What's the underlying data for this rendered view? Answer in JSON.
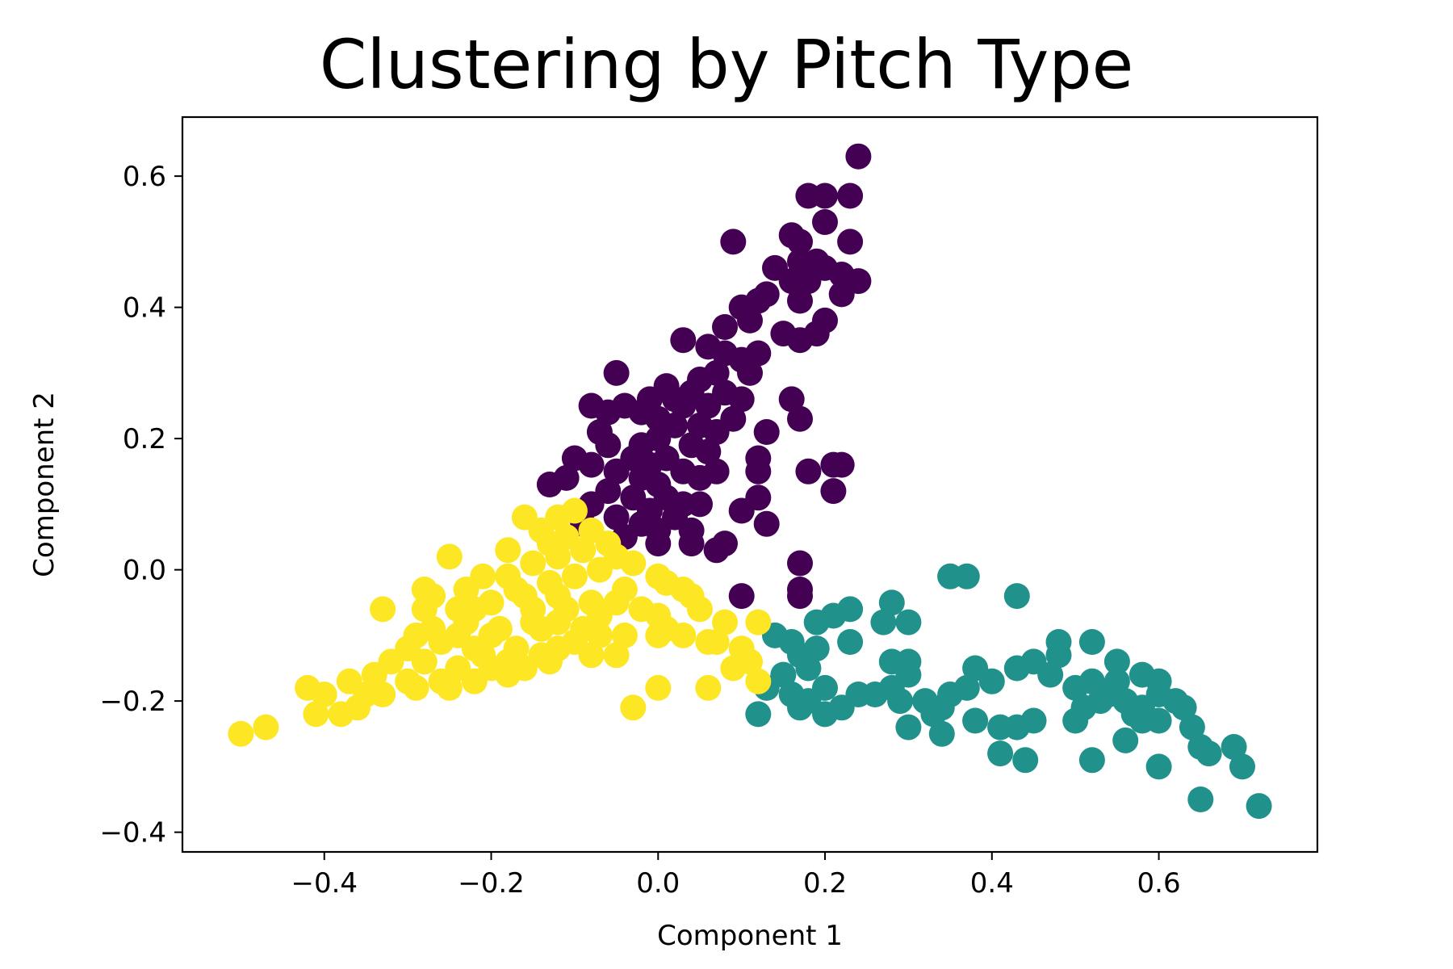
{
  "chart_data": {
    "type": "scatter",
    "title": "Clustering by Pitch Type",
    "xlabel": "Component 1",
    "ylabel": "Component 2",
    "xlim": [
      -0.57,
      0.79
    ],
    "ylim": [
      -0.43,
      0.69
    ],
    "xticks": [
      {
        "value": -0.4,
        "label": "−0.4"
      },
      {
        "value": -0.2,
        "label": "−0.2"
      },
      {
        "value": 0.0,
        "label": "0.0"
      },
      {
        "value": 0.2,
        "label": "0.2"
      },
      {
        "value": 0.4,
        "label": "0.4"
      },
      {
        "value": 0.6,
        "label": "0.6"
      }
    ],
    "yticks": [
      {
        "value": -0.4,
        "label": "−0.4"
      },
      {
        "value": -0.2,
        "label": "−0.2"
      },
      {
        "value": 0.0,
        "label": "0.0"
      },
      {
        "value": 0.2,
        "label": "0.2"
      },
      {
        "value": 0.4,
        "label": "0.4"
      },
      {
        "value": 0.6,
        "label": "0.6"
      }
    ],
    "grid": false,
    "legend": "none",
    "series": [
      {
        "color": "#440154",
        "points": [
          [
            0.24,
            0.63
          ],
          [
            0.18,
            0.57
          ],
          [
            0.2,
            0.57
          ],
          [
            0.23,
            0.57
          ],
          [
            0.2,
            0.53
          ],
          [
            0.16,
            0.51
          ],
          [
            0.09,
            0.5
          ],
          [
            0.17,
            0.5
          ],
          [
            0.23,
            0.5
          ],
          [
            0.17,
            0.47
          ],
          [
            0.19,
            0.47
          ],
          [
            0.2,
            0.46
          ],
          [
            0.22,
            0.45
          ],
          [
            0.14,
            0.46
          ],
          [
            0.16,
            0.44
          ],
          [
            0.18,
            0.44
          ],
          [
            0.24,
            0.44
          ],
          [
            0.22,
            0.42
          ],
          [
            0.13,
            0.42
          ],
          [
            0.12,
            0.41
          ],
          [
            0.1,
            0.4
          ],
          [
            0.17,
            0.41
          ],
          [
            0.11,
            0.38
          ],
          [
            0.2,
            0.38
          ],
          [
            0.08,
            0.37
          ],
          [
            0.19,
            0.36
          ],
          [
            0.15,
            0.36
          ],
          [
            0.17,
            0.35
          ],
          [
            0.03,
            0.35
          ],
          [
            0.06,
            0.34
          ],
          [
            0.08,
            0.33
          ],
          [
            0.1,
            0.32
          ],
          [
            0.12,
            0.33
          ],
          [
            0.07,
            0.3
          ],
          [
            0.05,
            0.29
          ],
          [
            0.11,
            0.3
          ],
          [
            -0.05,
            0.3
          ],
          [
            0.04,
            0.27
          ],
          [
            0.08,
            0.27
          ],
          [
            0.1,
            0.26
          ],
          [
            0.03,
            0.25
          ],
          [
            0.01,
            0.28
          ],
          [
            -0.01,
            0.26
          ],
          [
            -0.02,
            0.24
          ],
          [
            -0.04,
            0.25
          ],
          [
            -0.06,
            0.24
          ],
          [
            -0.08,
            0.25
          ],
          [
            0.0,
            0.23
          ],
          [
            0.02,
            0.22
          ],
          [
            0.05,
            0.22
          ],
          [
            0.07,
            0.21
          ],
          [
            0.09,
            0.23
          ],
          [
            0.16,
            0.26
          ],
          [
            0.17,
            0.23
          ],
          [
            0.13,
            0.21
          ],
          [
            0.0,
            0.2
          ],
          [
            -0.02,
            0.19
          ],
          [
            -0.03,
            0.17
          ],
          [
            -0.07,
            0.21
          ],
          [
            0.04,
            0.19
          ],
          [
            0.06,
            0.18
          ],
          [
            -0.01,
            0.16
          ],
          [
            0.01,
            0.17
          ],
          [
            0.03,
            0.15
          ],
          [
            -0.1,
            0.17
          ],
          [
            -0.11,
            0.14
          ],
          [
            -0.13,
            0.13
          ],
          [
            -0.08,
            0.16
          ],
          [
            -0.05,
            0.15
          ],
          [
            -0.02,
            0.14
          ],
          [
            0.0,
            0.13
          ],
          [
            0.05,
            0.14
          ],
          [
            0.07,
            0.15
          ],
          [
            0.12,
            0.17
          ],
          [
            0.12,
            0.15
          ],
          [
            0.18,
            0.15
          ],
          [
            0.21,
            0.16
          ],
          [
            0.22,
            0.16
          ],
          [
            0.21,
            0.12
          ],
          [
            -0.06,
            0.12
          ],
          [
            -0.03,
            0.11
          ],
          [
            0.01,
            0.11
          ],
          [
            0.03,
            0.1
          ],
          [
            -0.08,
            0.1
          ],
          [
            -0.05,
            0.08
          ],
          [
            -0.02,
            0.07
          ],
          [
            0.0,
            0.06
          ],
          [
            0.05,
            0.1
          ],
          [
            0.12,
            0.11
          ],
          [
            0.1,
            0.09
          ],
          [
            0.13,
            0.07
          ],
          [
            -0.04,
            0.05
          ],
          [
            0.0,
            0.04
          ],
          [
            0.04,
            0.04
          ],
          [
            0.07,
            0.03
          ],
          [
            0.08,
            0.04
          ],
          [
            0.17,
            0.01
          ],
          [
            0.17,
            -0.03
          ],
          [
            0.17,
            -0.04
          ],
          [
            0.1,
            -0.04
          ],
          [
            -0.01,
            0.09
          ],
          [
            0.02,
            0.08
          ],
          [
            0.04,
            0.06
          ],
          [
            -0.09,
            0.07
          ],
          [
            -0.06,
            0.19
          ],
          [
            0.02,
            0.26
          ],
          [
            0.06,
            0.25
          ]
        ]
      },
      {
        "color": "#21918c",
        "points": [
          [
            0.35,
            -0.01
          ],
          [
            0.37,
            -0.01
          ],
          [
            0.43,
            -0.04
          ],
          [
            0.28,
            -0.05
          ],
          [
            0.23,
            -0.06
          ],
          [
            0.19,
            -0.08
          ],
          [
            0.21,
            -0.07
          ],
          [
            0.27,
            -0.08
          ],
          [
            0.3,
            -0.08
          ],
          [
            0.14,
            -0.1
          ],
          [
            0.16,
            -0.11
          ],
          [
            0.19,
            -0.12
          ],
          [
            0.23,
            -0.11
          ],
          [
            0.17,
            -0.13
          ],
          [
            0.28,
            -0.14
          ],
          [
            0.3,
            -0.14
          ],
          [
            0.18,
            -0.15
          ],
          [
            0.3,
            -0.16
          ],
          [
            0.38,
            -0.15
          ],
          [
            0.43,
            -0.15
          ],
          [
            0.45,
            -0.14
          ],
          [
            0.47,
            -0.16
          ],
          [
            0.48,
            -0.11
          ],
          [
            0.52,
            -0.11
          ],
          [
            0.55,
            -0.14
          ],
          [
            0.58,
            -0.16
          ],
          [
            0.6,
            -0.17
          ],
          [
            0.13,
            -0.18
          ],
          [
            0.16,
            -0.19
          ],
          [
            0.2,
            -0.18
          ],
          [
            0.24,
            -0.19
          ],
          [
            0.28,
            -0.18
          ],
          [
            0.32,
            -0.2
          ],
          [
            0.35,
            -0.19
          ],
          [
            0.37,
            -0.18
          ],
          [
            0.4,
            -0.17
          ],
          [
            0.26,
            -0.19
          ],
          [
            0.29,
            -0.2
          ],
          [
            0.5,
            -0.18
          ],
          [
            0.52,
            -0.17
          ],
          [
            0.54,
            -0.19
          ],
          [
            0.56,
            -0.2
          ],
          [
            0.58,
            -0.21
          ],
          [
            0.6,
            -0.19
          ],
          [
            0.62,
            -0.2
          ],
          [
            0.63,
            -0.21
          ],
          [
            0.12,
            -0.22
          ],
          [
            0.17,
            -0.21
          ],
          [
            0.2,
            -0.22
          ],
          [
            0.22,
            -0.21
          ],
          [
            0.34,
            -0.21
          ],
          [
            0.38,
            -0.23
          ],
          [
            0.45,
            -0.23
          ],
          [
            0.5,
            -0.23
          ],
          [
            0.53,
            -0.2
          ],
          [
            0.58,
            -0.23
          ],
          [
            0.6,
            -0.23
          ],
          [
            0.64,
            -0.24
          ],
          [
            0.3,
            -0.24
          ],
          [
            0.34,
            -0.25
          ],
          [
            0.41,
            -0.24
          ],
          [
            0.43,
            -0.24
          ],
          [
            0.56,
            -0.26
          ],
          [
            0.65,
            -0.27
          ],
          [
            0.66,
            -0.28
          ],
          [
            0.69,
            -0.27
          ],
          [
            0.41,
            -0.28
          ],
          [
            0.44,
            -0.29
          ],
          [
            0.52,
            -0.29
          ],
          [
            0.6,
            -0.3
          ],
          [
            0.7,
            -0.3
          ],
          [
            0.65,
            -0.35
          ],
          [
            0.72,
            -0.36
          ],
          [
            0.48,
            -0.13
          ],
          [
            0.51,
            -0.21
          ],
          [
            0.57,
            -0.22
          ],
          [
            0.55,
            -0.17
          ],
          [
            0.15,
            -0.16
          ],
          [
            0.18,
            -0.2
          ],
          [
            0.33,
            -0.22
          ]
        ]
      },
      {
        "color": "#fde725",
        "points": [
          [
            -0.1,
            0.09
          ],
          [
            -0.16,
            0.08
          ],
          [
            -0.12,
            0.08
          ],
          [
            -0.14,
            0.06
          ],
          [
            -0.11,
            0.05
          ],
          [
            -0.08,
            0.06
          ],
          [
            -0.06,
            0.04
          ],
          [
            -0.13,
            0.04
          ],
          [
            -0.18,
            0.03
          ],
          [
            -0.09,
            0.03
          ],
          [
            -0.05,
            0.02
          ],
          [
            -0.03,
            0.01
          ],
          [
            -0.25,
            0.02
          ],
          [
            -0.12,
            0.02
          ],
          [
            -0.15,
            0.01
          ],
          [
            -0.07,
            0.0
          ],
          [
            0.0,
            -0.01
          ],
          [
            0.01,
            -0.02
          ],
          [
            -0.18,
            -0.01
          ],
          [
            -0.21,
            -0.01
          ],
          [
            -0.1,
            -0.01
          ],
          [
            -0.13,
            -0.02
          ],
          [
            -0.04,
            -0.03
          ],
          [
            0.03,
            -0.03
          ],
          [
            0.04,
            -0.04
          ],
          [
            -0.28,
            -0.03
          ],
          [
            -0.23,
            -0.03
          ],
          [
            -0.17,
            -0.03
          ],
          [
            -0.12,
            -0.04
          ],
          [
            -0.08,
            -0.05
          ],
          [
            -0.05,
            -0.05
          ],
          [
            -0.33,
            -0.06
          ],
          [
            -0.28,
            -0.06
          ],
          [
            -0.24,
            -0.06
          ],
          [
            -0.2,
            -0.05
          ],
          [
            -0.15,
            -0.06
          ],
          [
            -0.11,
            -0.06
          ],
          [
            -0.07,
            -0.07
          ],
          [
            0.0,
            -0.07
          ],
          [
            0.01,
            -0.09
          ],
          [
            0.08,
            -0.08
          ],
          [
            0.12,
            -0.08
          ],
          [
            -0.27,
            -0.09
          ],
          [
            -0.23,
            -0.08
          ],
          [
            -0.19,
            -0.09
          ],
          [
            -0.14,
            -0.09
          ],
          [
            -0.09,
            -0.09
          ],
          [
            -0.04,
            -0.1
          ],
          [
            0.0,
            -0.1
          ],
          [
            0.03,
            -0.1
          ],
          [
            0.06,
            -0.11
          ],
          [
            -0.3,
            -0.12
          ],
          [
            -0.26,
            -0.11
          ],
          [
            -0.22,
            -0.12
          ],
          [
            -0.17,
            -0.12
          ],
          [
            -0.12,
            -0.12
          ],
          [
            -0.08,
            -0.13
          ],
          [
            -0.05,
            -0.13
          ],
          [
            0.1,
            -0.12
          ],
          [
            -0.32,
            -0.14
          ],
          [
            -0.28,
            -0.14
          ],
          [
            -0.24,
            -0.15
          ],
          [
            -0.2,
            -0.15
          ],
          [
            -0.16,
            -0.15
          ],
          [
            -0.13,
            -0.14
          ],
          [
            0.09,
            -0.15
          ],
          [
            0.11,
            -0.14
          ],
          [
            -0.34,
            -0.16
          ],
          [
            -0.3,
            -0.17
          ],
          [
            -0.26,
            -0.17
          ],
          [
            -0.22,
            -0.17
          ],
          [
            -0.18,
            -0.16
          ],
          [
            -0.37,
            -0.17
          ],
          [
            -0.42,
            -0.18
          ],
          [
            -0.4,
            -0.19
          ],
          [
            -0.35,
            -0.19
          ],
          [
            -0.33,
            -0.19
          ],
          [
            -0.29,
            -0.18
          ],
          [
            -0.25,
            -0.18
          ],
          [
            0.0,
            -0.18
          ],
          [
            0.06,
            -0.18
          ],
          [
            0.12,
            -0.17
          ],
          [
            -0.41,
            -0.22
          ],
          [
            -0.38,
            -0.22
          ],
          [
            -0.36,
            -0.21
          ],
          [
            -0.03,
            -0.21
          ],
          [
            -0.5,
            -0.25
          ],
          [
            -0.47,
            -0.24
          ],
          [
            -0.2,
            -0.1
          ],
          [
            -0.15,
            -0.08
          ],
          [
            -0.22,
            -0.06
          ],
          [
            -0.27,
            -0.04
          ],
          [
            -0.16,
            -0.04
          ],
          [
            -0.14,
            -0.13
          ],
          [
            -0.1,
            -0.11
          ],
          [
            -0.18,
            -0.14
          ],
          [
            -0.21,
            -0.13
          ],
          [
            -0.24,
            -0.1
          ],
          [
            -0.29,
            -0.1
          ],
          [
            -0.12,
            -0.08
          ],
          [
            -0.07,
            -0.1
          ],
          [
            -0.02,
            -0.06
          ],
          [
            0.05,
            -0.06
          ],
          [
            0.07,
            -0.11
          ]
        ]
      }
    ]
  }
}
